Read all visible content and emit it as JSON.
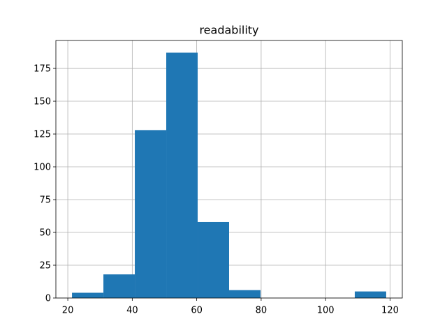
{
  "chart_data": {
    "type": "histogram",
    "title": "readability",
    "bins": [
      21.3,
      31.05,
      40.8,
      50.55,
      60.3,
      70.05,
      79.8,
      89.55,
      99.3,
      109.05,
      118.8
    ],
    "values": [
      4,
      18,
      128,
      187,
      58,
      6,
      0,
      0,
      0,
      5
    ],
    "color": "#1f77b4",
    "xlim": [
      16.3,
      123.8
    ],
    "xticks": [
      20,
      40,
      60,
      80,
      100,
      120
    ],
    "ylim": [
      0,
      196.3
    ],
    "yticks": [
      0,
      25,
      50,
      75,
      100,
      125,
      150,
      175
    ],
    "grid": true
  }
}
